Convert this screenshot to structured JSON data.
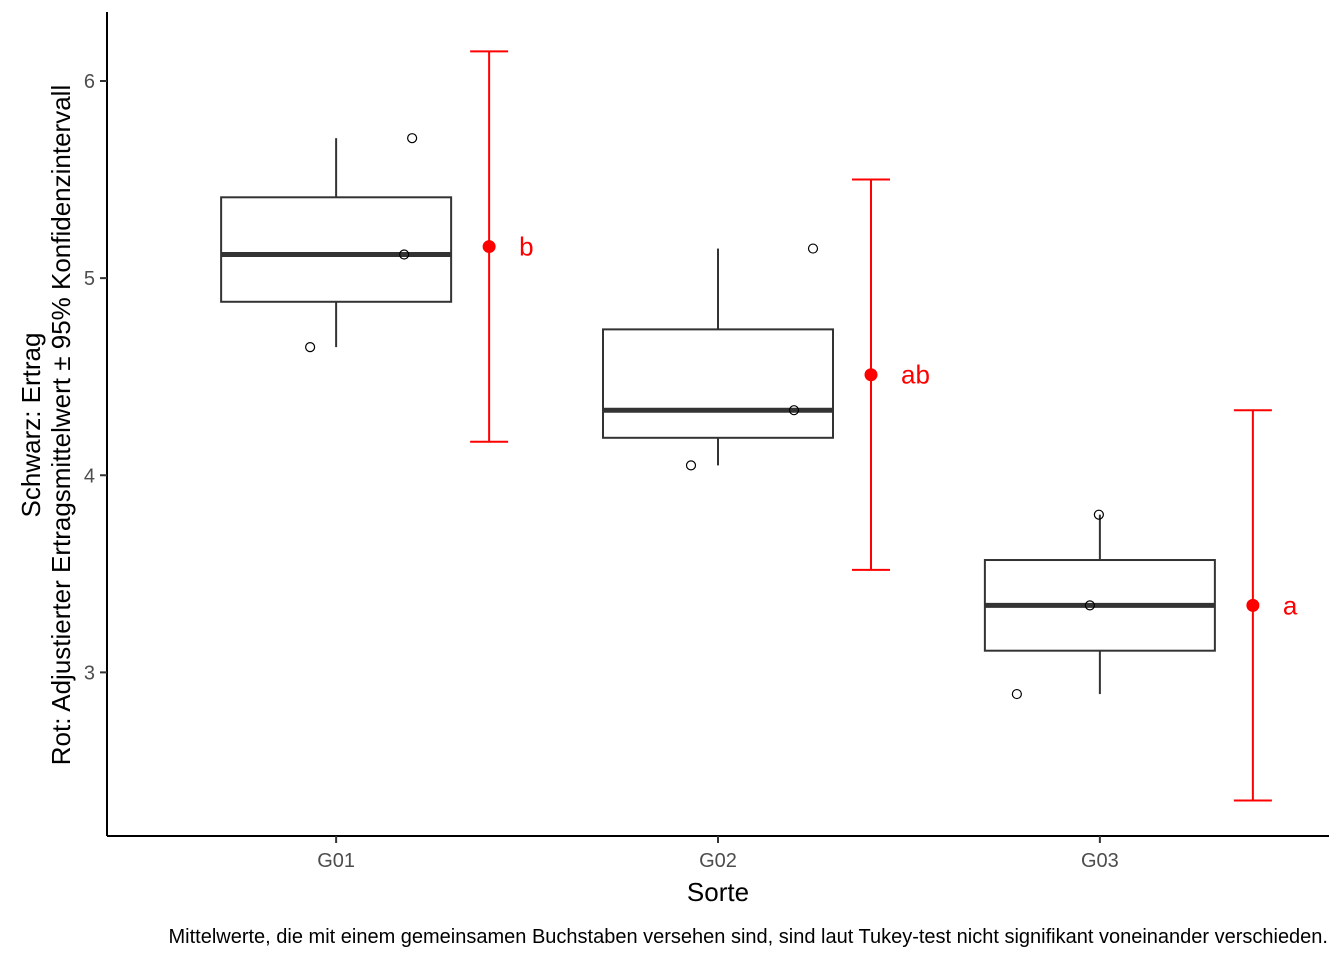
{
  "chart_data": {
    "type": "boxplot",
    "xlabel": "Sorte",
    "ylabel_line1": "Schwarz: Ertrag",
    "ylabel_line2": "Rot: Adjustierter Ertragsmittelwert ± 95% Konfidenzintervall",
    "caption": "Mittelwerte, die mit einem gemeinsamen Buchstaben versehen sind, sind laut Tukey-test nicht signifikant voneinander verschieden.",
    "ylim": [
      2.17,
      6.35
    ],
    "yticks": [
      3,
      4,
      5,
      6
    ],
    "grid": false,
    "colors": {
      "box": "#333333",
      "estimate": "#ff0000",
      "axis": "#000000"
    },
    "categories": [
      "G01",
      "G02",
      "G03"
    ],
    "boxes": [
      {
        "category": "G01",
        "min": 4.65,
        "q1": 4.88,
        "median": 5.12,
        "q3": 5.41,
        "max": 5.71
      },
      {
        "category": "G02",
        "min": 4.05,
        "q1": 4.19,
        "median": 4.33,
        "q3": 4.74,
        "max": 5.15
      },
      {
        "category": "G03",
        "min": 2.89,
        "q1": 3.11,
        "median": 3.34,
        "q3": 3.57,
        "max": 3.8
      }
    ],
    "points": [
      {
        "category": "G01",
        "y": 4.65
      },
      {
        "category": "G01",
        "y": 5.12
      },
      {
        "category": "G01",
        "y": 5.71
      },
      {
        "category": "G02",
        "y": 4.05
      },
      {
        "category": "G02",
        "y": 4.33
      },
      {
        "category": "G02",
        "y": 5.15
      },
      {
        "category": "G03",
        "y": 2.89
      },
      {
        "category": "G03",
        "y": 3.34
      },
      {
        "category": "G03",
        "y": 3.8
      }
    ],
    "estimates": [
      {
        "category": "G01",
        "mean": 5.16,
        "lower": 4.17,
        "upper": 6.15,
        "letter": "b"
      },
      {
        "category": "G02",
        "mean": 4.51,
        "lower": 3.52,
        "upper": 5.5,
        "letter": "ab"
      },
      {
        "category": "G03",
        "mean": 3.34,
        "lower": 2.35,
        "upper": 4.33,
        "letter": "a"
      }
    ]
  }
}
